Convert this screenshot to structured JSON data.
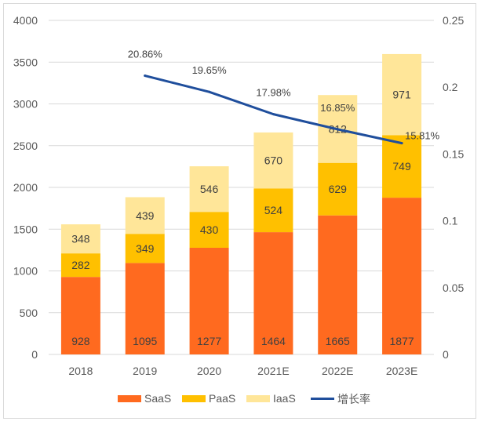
{
  "chart_data": {
    "type": "bar",
    "stacked": true,
    "categories": [
      "2018",
      "2019",
      "2020",
      "2021E",
      "2022E",
      "2023E"
    ],
    "series": [
      {
        "name": "SaaS",
        "color": "#ff6a1f",
        "values": [
          928,
          1095,
          1277,
          1464,
          1665,
          1877
        ],
        "labels": [
          "928",
          "1095",
          "1277",
          "1464",
          "1665",
          "1877"
        ]
      },
      {
        "name": "PaaS",
        "color": "#ffc000",
        "values": [
          282,
          349,
          430,
          524,
          629,
          749
        ],
        "labels": [
          "282",
          "349",
          "430",
          "524",
          "629",
          "749"
        ]
      },
      {
        "name": "IaaS",
        "color": "#ffe699",
        "values": [
          348,
          439,
          546,
          670,
          812,
          971
        ],
        "labels": [
          "348",
          "439",
          "546",
          "670",
          "812",
          "971"
        ]
      }
    ],
    "line_series": {
      "name": "增长率",
      "color": "#1f4e9c",
      "axis": "right",
      "values": [
        null,
        0.2086,
        0.1965,
        0.1798,
        0.1685,
        0.1581
      ],
      "labels": [
        "",
        "20.86%",
        "19.65%",
        "17.98%",
        "16.85%",
        "15.81%"
      ]
    },
    "y_left": {
      "min": 0,
      "max": 4000,
      "ticks": [
        "0",
        "500",
        "1000",
        "1500",
        "2000",
        "2500",
        "3000",
        "3500",
        "4000"
      ]
    },
    "y_right": {
      "min": 0,
      "max": 0.25,
      "ticks": [
        "0",
        "0.05",
        "0.1",
        "0.15",
        "0.2",
        "0.25"
      ]
    },
    "legend": {
      "position": "bottom",
      "items": [
        "SaaS",
        "PaaS",
        "IaaS",
        "增长率"
      ]
    },
    "grid": true,
    "title": "",
    "xlabel": "",
    "ylabel": ""
  }
}
